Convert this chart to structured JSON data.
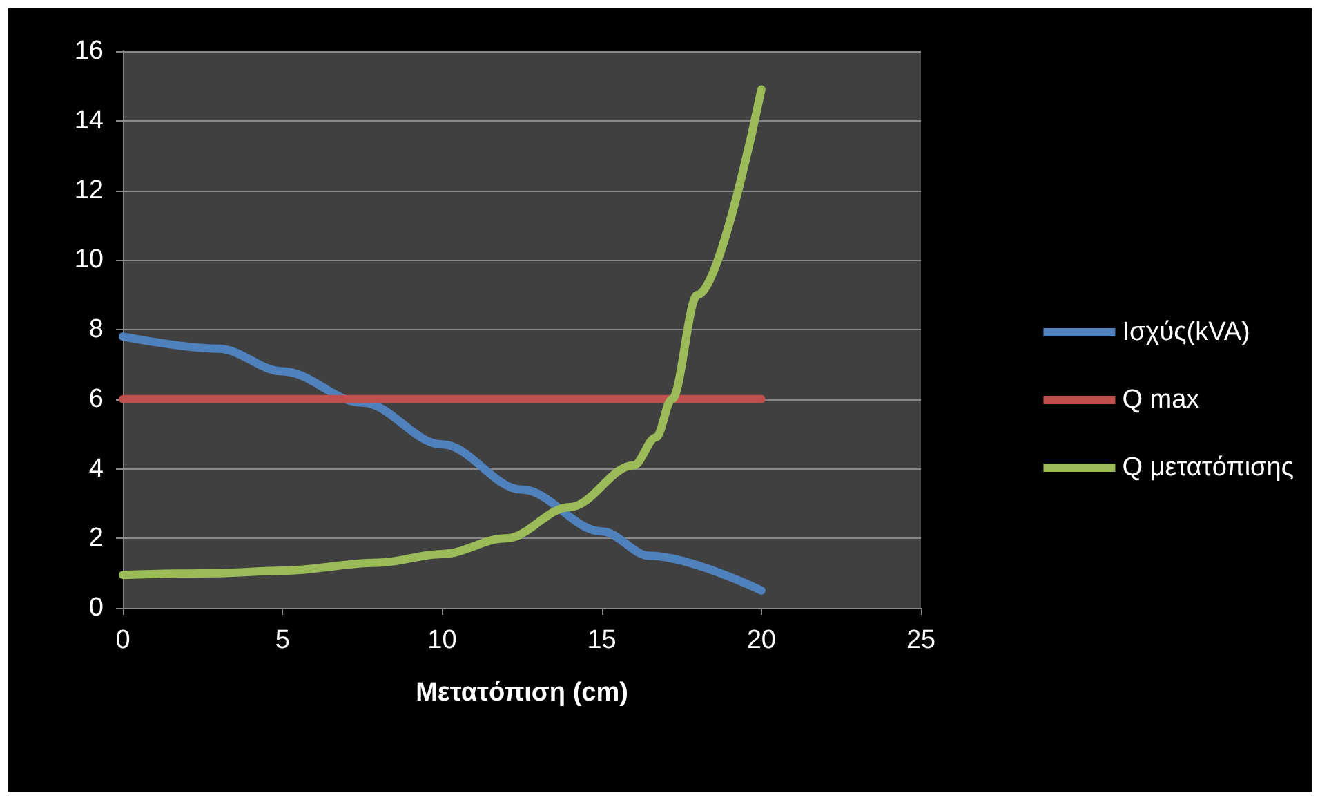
{
  "chart_data": {
    "type": "line",
    "xlabel": "Μετατόπιση (cm)",
    "xlim": [
      0,
      25
    ],
    "xticks": [
      0,
      5,
      10,
      15,
      20,
      25
    ],
    "ylim": [
      0,
      16
    ],
    "yticks": [
      0,
      2,
      4,
      6,
      8,
      10,
      12,
      14,
      16
    ],
    "grid": "y",
    "legend": "right",
    "marker": "none",
    "line_style": "solid",
    "series": [
      {
        "name": "Ισχύς(kVA)",
        "color": "#4f81bd",
        "x": [
          0,
          3,
          5,
          7.5,
          10,
          12.5,
          15,
          16.5,
          20
        ],
        "values": [
          7.8,
          7.45,
          6.8,
          5.9,
          4.7,
          3.4,
          2.2,
          1.5,
          0.5
        ]
      },
      {
        "name": "Q max",
        "color": "#c0504d",
        "x": [
          0,
          20
        ],
        "values": [
          6,
          6
        ]
      },
      {
        "name": "Q μετατόπισης",
        "color": "#9bbb59",
        "x": [
          0,
          3,
          5,
          8,
          10,
          12,
          14,
          16,
          16.7,
          17.2,
          18,
          20
        ],
        "values": [
          0.95,
          1.0,
          1.07,
          1.3,
          1.55,
          2.0,
          2.9,
          4.1,
          4.9,
          6,
          9,
          14.9
        ]
      }
    ]
  }
}
